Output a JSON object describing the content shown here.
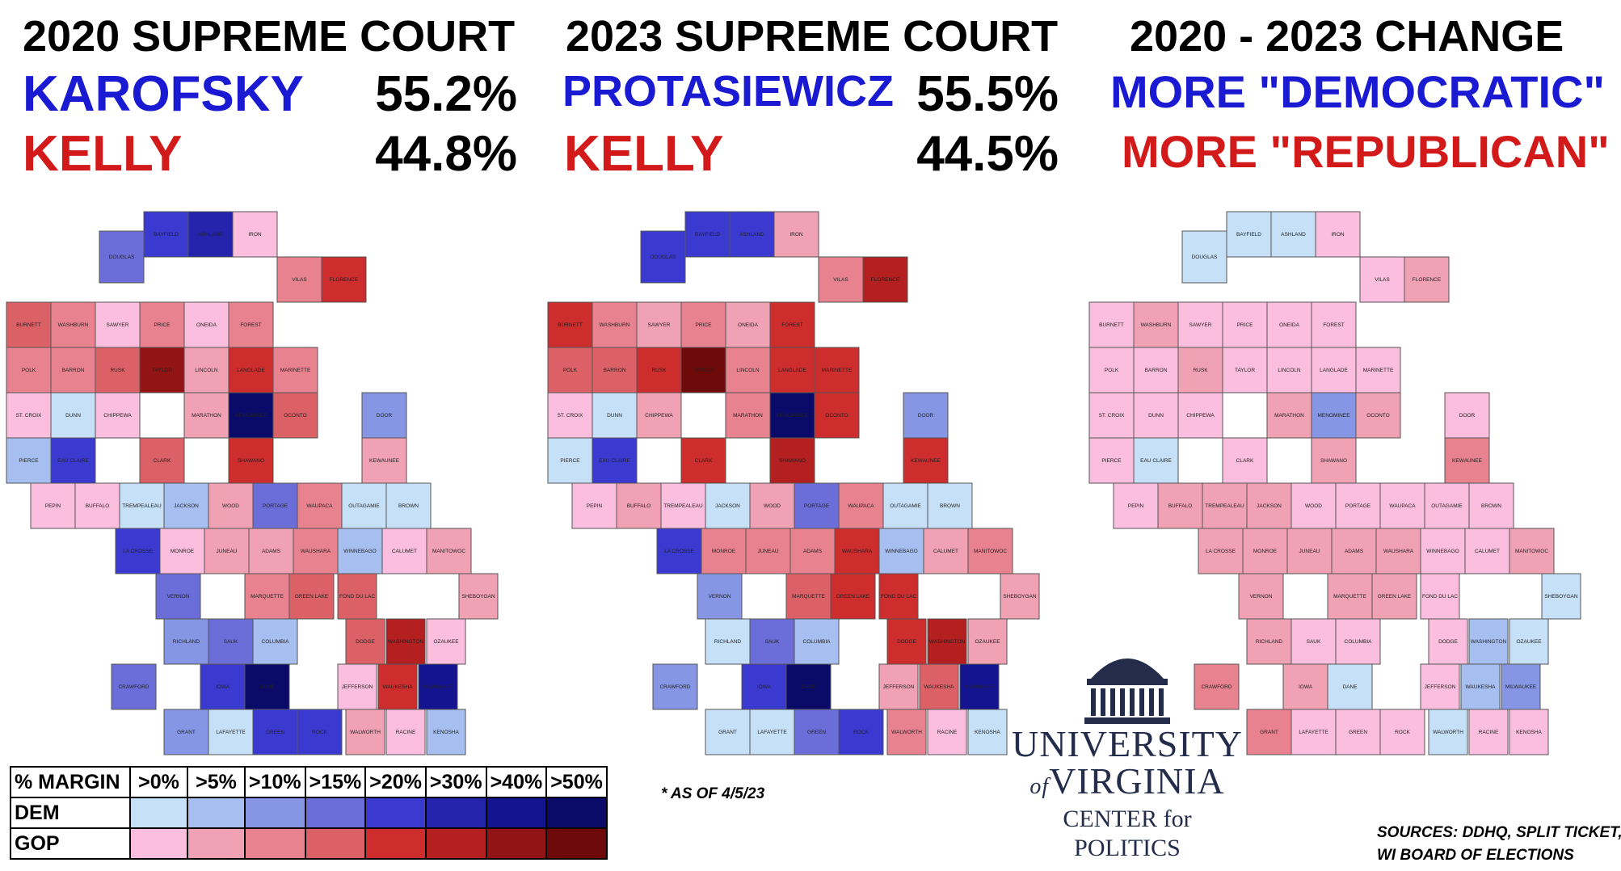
{
  "panels": [
    {
      "title": "2020 SUPREME COURT",
      "dem_name": "KAROFSKY",
      "dem_pct": "55.2%",
      "gop_name": "KELLY",
      "gop_pct": "44.8%"
    },
    {
      "title": "2023 SUPREME COURT",
      "dem_name": "PROTASIEWICZ",
      "dem_pct": "55.5%",
      "gop_name": "KELLY",
      "gop_pct": "44.5%"
    },
    {
      "title": "2020 - 2023 CHANGE",
      "dem_label": "MORE \"DEMOCRATIC\"",
      "gop_label": "MORE \"REPUBLICAN\""
    }
  ],
  "colors": {
    "dem_text": "#1a1ad2",
    "gop_text": "#d21a1a",
    "dem_scale": [
      "#c6e0f8",
      "#a7bff0",
      "#8696e4",
      "#6b6ed8",
      "#3a3ad0",
      "#2323ac",
      "#141490",
      "#0a0a68"
    ],
    "gop_scale": [
      "#fbbede",
      "#f0a1b4",
      "#e8828e",
      "#dc6166",
      "#cd2d2d",
      "#b41f1f",
      "#921414",
      "#6e0a0a"
    ],
    "border": "#555555",
    "state_border": "#222222"
  },
  "legend": {
    "header": "% MARGIN",
    "bins": [
      ">0%",
      ">5%",
      ">10%",
      ">15%",
      ">20%",
      ">30%",
      ">40%",
      ">50%"
    ],
    "rows": [
      "DEM",
      "GOP"
    ]
  },
  "map_data": {
    "type": "choropleth",
    "region": "Wisconsin counties",
    "codes": "D0-D7 = Democratic margin bins >0%..>50%; R0-R7 = Republican margin bins >0%..>50%",
    "counties": [
      {
        "name": "DOUGLAS",
        "r": 0,
        "c": 1,
        "v2020": "D3",
        "v2023": "D4",
        "change": "D0"
      },
      {
        "name": "BAYFIELD",
        "r": 0,
        "c": 2,
        "v2020": "D4",
        "v2023": "D4",
        "change": "D0"
      },
      {
        "name": "ASHLAND",
        "r": 0,
        "c": 3,
        "v2020": "D5",
        "v2023": "D4",
        "change": "D0"
      },
      {
        "name": "IRON",
        "r": 0,
        "c": 4,
        "v2020": "R0",
        "v2023": "R1",
        "change": "R0"
      },
      {
        "name": "VILAS",
        "r": 1,
        "c": 5,
        "v2020": "R2",
        "v2023": "R2",
        "change": "R0"
      },
      {
        "name": "BURNETT",
        "r": 2,
        "c": 0,
        "v2020": "R3",
        "v2023": "R4",
        "change": "R0"
      },
      {
        "name": "WASHBURN",
        "r": 2,
        "c": 1,
        "v2020": "R2",
        "v2023": "R2",
        "change": "R1"
      },
      {
        "name": "SAWYER",
        "r": 2,
        "c": 2,
        "v2020": "R0",
        "v2023": "R1",
        "change": "R0"
      },
      {
        "name": "PRICE",
        "r": 2,
        "c": 3,
        "v2020": "R2",
        "v2023": "R2",
        "change": "R0"
      },
      {
        "name": "ONEIDA",
        "r": 2,
        "c": 4,
        "v2020": "R0",
        "v2023": "R1",
        "change": "R0"
      },
      {
        "name": "FOREST",
        "r": 2,
        "c": 5,
        "v2020": "R2",
        "v2023": "R4",
        "change": "R0"
      },
      {
        "name": "FLORENCE",
        "r": 1,
        "c": 6,
        "v2020": "R4",
        "v2023": "R5",
        "change": "R1"
      },
      {
        "name": "POLK",
        "r": 3,
        "c": 0,
        "v2020": "R2",
        "v2023": "R3",
        "change": "R0"
      },
      {
        "name": "BARRON",
        "r": 3,
        "c": 1,
        "v2020": "R2",
        "v2023": "R3",
        "change": "R0"
      },
      {
        "name": "RUSK",
        "r": 3,
        "c": 2,
        "v2020": "R3",
        "v2023": "R4",
        "change": "R1"
      },
      {
        "name": "LINCOLN",
        "r": 3,
        "c": 4,
        "v2020": "R1",
        "v2023": "R2",
        "change": "R0"
      },
      {
        "name": "LANGLADE",
        "r": 3,
        "c": 5,
        "v2020": "R4",
        "v2023": "R4",
        "change": "R0"
      },
      {
        "name": "MARINETTE",
        "r": 3,
        "c": 6,
        "v2020": "R2",
        "v2023": "R4",
        "change": "R0"
      },
      {
        "name": "TAYLOR",
        "r": 3,
        "c": 3,
        "v2020": "R6",
        "v2023": "R7",
        "change": "R0"
      },
      {
        "name": "ST. CROIX",
        "r": 4,
        "c": 0,
        "v2020": "R0",
        "v2023": "R0",
        "change": "R0"
      },
      {
        "name": "DUNN",
        "r": 4,
        "c": 1,
        "v2020": "D0",
        "v2023": "D0",
        "change": "R0"
      },
      {
        "name": "CHIPPEWA",
        "r": 4,
        "c": 2,
        "v2020": "R0",
        "v2023": "R1",
        "change": "R0"
      },
      {
        "name": "MARATHON",
        "r": 4,
        "c": 4,
        "v2020": "R1",
        "v2023": "R2",
        "change": "R1"
      },
      {
        "name": "MENOMINEE",
        "r": 4,
        "c": 5,
        "v2020": "D7",
        "v2023": "D7",
        "change": "D2"
      },
      {
        "name": "OCONTO",
        "r": 4,
        "c": 6,
        "v2020": "R3",
        "v2023": "R4",
        "change": "R1"
      },
      {
        "name": "DOOR",
        "r": 4,
        "c": 8,
        "v2020": "D2",
        "v2023": "D2",
        "change": "R0"
      },
      {
        "name": "PIERCE",
        "r": 5,
        "c": 0,
        "v2020": "D1",
        "v2023": "D0",
        "change": "R0"
      },
      {
        "name": "EAU CLAIRE",
        "r": 5,
        "c": 1,
        "v2020": "D4",
        "v2023": "D4",
        "change": "D0"
      },
      {
        "name": "CLARK",
        "r": 5,
        "c": 3,
        "v2020": "R3",
        "v2023": "R4",
        "change": "R0"
      },
      {
        "name": "SHAWANO",
        "r": 5,
        "c": 5,
        "v2020": "R4",
        "v2023": "R5",
        "change": "R1"
      },
      {
        "name": "KEWAUNEE",
        "r": 5,
        "c": 8,
        "v2020": "R1",
        "v2023": "R4",
        "change": "R2"
      },
      {
        "name": "PEPIN",
        "r": 6,
        "c": 0,
        "v2020": "R0",
        "v2023": "R0",
        "change": "R0"
      },
      {
        "name": "BUFFALO",
        "r": 6,
        "c": 1,
        "v2020": "R0",
        "v2023": "R1",
        "change": "R1"
      },
      {
        "name": "TREMPEALEAU",
        "r": 6,
        "c": 2,
        "v2020": "D0",
        "v2023": "R0",
        "change": "R1"
      },
      {
        "name": "JACKSON",
        "r": 6,
        "c": 3,
        "v2020": "D1",
        "v2023": "D0",
        "change": "R1"
      },
      {
        "name": "WOOD",
        "r": 6,
        "c": 4,
        "v2020": "R1",
        "v2023": "R1",
        "change": "R0"
      },
      {
        "name": "PORTAGE",
        "r": 6,
        "c": 5,
        "v2020": "D3",
        "v2023": "D3",
        "change": "R0"
      },
      {
        "name": "WAUPACA",
        "r": 6,
        "c": 6,
        "v2020": "R2",
        "v2023": "R2",
        "change": "R0"
      },
      {
        "name": "OUTAGAMIE",
        "r": 6,
        "c": 7,
        "v2020": "D0",
        "v2023": "D0",
        "change": "R0"
      },
      {
        "name": "BROWN",
        "r": 6,
        "c": 8,
        "v2020": "D0",
        "v2023": "D0",
        "change": "R0"
      },
      {
        "name": "LA CROSSE",
        "r": 7,
        "c": 1,
        "v2020": "D4",
        "v2023": "D4",
        "change": "R1"
      },
      {
        "name": "MONROE",
        "r": 7,
        "c": 2,
        "v2020": "R0",
        "v2023": "R2",
        "change": "R1"
      },
      {
        "name": "JUNEAU",
        "r": 7,
        "c": 3,
        "v2020": "R1",
        "v2023": "R2",
        "change": "R1"
      },
      {
        "name": "ADAMS",
        "r": 7,
        "c": 4,
        "v2020": "R1",
        "v2023": "R2",
        "change": "R1"
      },
      {
        "name": "WAUSHARA",
        "r": 7,
        "c": 5,
        "v2020": "R2",
        "v2023": "R4",
        "change": "R1"
      },
      {
        "name": "WINNEBAGO",
        "r": 7,
        "c": 6,
        "v2020": "D1",
        "v2023": "D1",
        "change": "R0"
      },
      {
        "name": "CALUMET",
        "r": 7,
        "c": 7,
        "v2020": "R0",
        "v2023": "R1",
        "change": "R0"
      },
      {
        "name": "MANITOWOC",
        "r": 7,
        "c": 8,
        "v2020": "R1",
        "v2023": "R2",
        "change": "R1"
      },
      {
        "name": "MARQUETTE",
        "r": 8,
        "c": 3,
        "v2020": "R2",
        "v2023": "R3",
        "change": "R1"
      },
      {
        "name": "GREEN LAKE",
        "r": 8,
        "c": 4,
        "v2020": "R3",
        "v2023": "R4",
        "change": "R1"
      },
      {
        "name": "FOND DU LAC",
        "r": 8,
        "c": 5,
        "v2020": "R3",
        "v2023": "R4",
        "change": "R0"
      },
      {
        "name": "SHEBOYGAN",
        "r": 8,
        "c": 8,
        "v2020": "R1",
        "v2023": "R1",
        "change": "D0"
      },
      {
        "name": "VERNON",
        "r": 8,
        "c": 1,
        "v2020": "D3",
        "v2023": "D2",
        "change": "R1"
      },
      {
        "name": "RICHLAND",
        "r": 9,
        "c": 1,
        "v2020": "D2",
        "v2023": "D0",
        "change": "R1"
      },
      {
        "name": "SAUK",
        "r": 9,
        "c": 2,
        "v2020": "D3",
        "v2023": "D3",
        "change": "R0"
      },
      {
        "name": "COLUMBIA",
        "r": 9,
        "c": 3,
        "v2020": "D1",
        "v2023": "D1",
        "change": "R0"
      },
      {
        "name": "DODGE",
        "r": 9,
        "c": 5,
        "v2020": "R3",
        "v2023": "R4",
        "change": "R0"
      },
      {
        "name": "WASHINGTON",
        "r": 9,
        "c": 6,
        "v2020": "R5",
        "v2023": "R5",
        "change": "D1"
      },
      {
        "name": "OZAUKEE",
        "r": 9,
        "c": 7,
        "v2020": "R0",
        "v2023": "R1",
        "change": "D0"
      },
      {
        "name": "CRAWFORD",
        "r": 10,
        "c": 0,
        "v2020": "D3",
        "v2023": "D2",
        "change": "R2"
      },
      {
        "name": "IOWA",
        "r": 10,
        "c": 2,
        "v2020": "D4",
        "v2023": "D4",
        "change": "R1"
      },
      {
        "name": "DANE",
        "r": 10,
        "c": 3,
        "v2020": "D7",
        "v2023": "D7",
        "change": "D0"
      },
      {
        "name": "JEFFERSON",
        "r": 10,
        "c": 5,
        "v2020": "R0",
        "v2023": "R1",
        "change": "R0"
      },
      {
        "name": "WAUKESHA",
        "r": 10,
        "c": 6,
        "v2020": "R4",
        "v2023": "R3",
        "change": "D1"
      },
      {
        "name": "MILWAUKEE",
        "r": 10,
        "c": 7,
        "v2020": "D6",
        "v2023": "D6",
        "change": "D2"
      },
      {
        "name": "GRANT",
        "r": 11,
        "c": 1,
        "v2020": "D2",
        "v2023": "D0",
        "change": "R2"
      },
      {
        "name": "LAFAYETTE",
        "r": 11,
        "c": 2,
        "v2020": "D0",
        "v2023": "D0",
        "change": "R0"
      },
      {
        "name": "GREEN",
        "r": 11,
        "c": 3,
        "v2020": "D4",
        "v2023": "D3",
        "change": "R0"
      },
      {
        "name": "ROCK",
        "r": 11,
        "c": 4,
        "v2020": "D4",
        "v2023": "D4",
        "change": "R0"
      },
      {
        "name": "WALWORTH",
        "r": 11,
        "c": 5,
        "v2020": "R1",
        "v2023": "R2",
        "change": "D0"
      },
      {
        "name": "RACINE",
        "r": 11,
        "c": 6,
        "v2020": "R0",
        "v2023": "R0",
        "change": "R0"
      },
      {
        "name": "KENOSHA",
        "r": 11,
        "c": 7,
        "v2020": "D1",
        "v2023": "D0",
        "change": "R0"
      }
    ]
  },
  "footnote": "* AS OF 4/5/23",
  "logo": {
    "line1": "UNIVERSITY",
    "of": "of",
    "line2": "VIRGINIA",
    "line3": "CENTER for POLITICS",
    "icon": "rotunda-icon"
  },
  "sources": [
    "SOURCES: DDHQ, SPLIT TICKET,",
    "WI BOARD OF ELECTIONS"
  ]
}
